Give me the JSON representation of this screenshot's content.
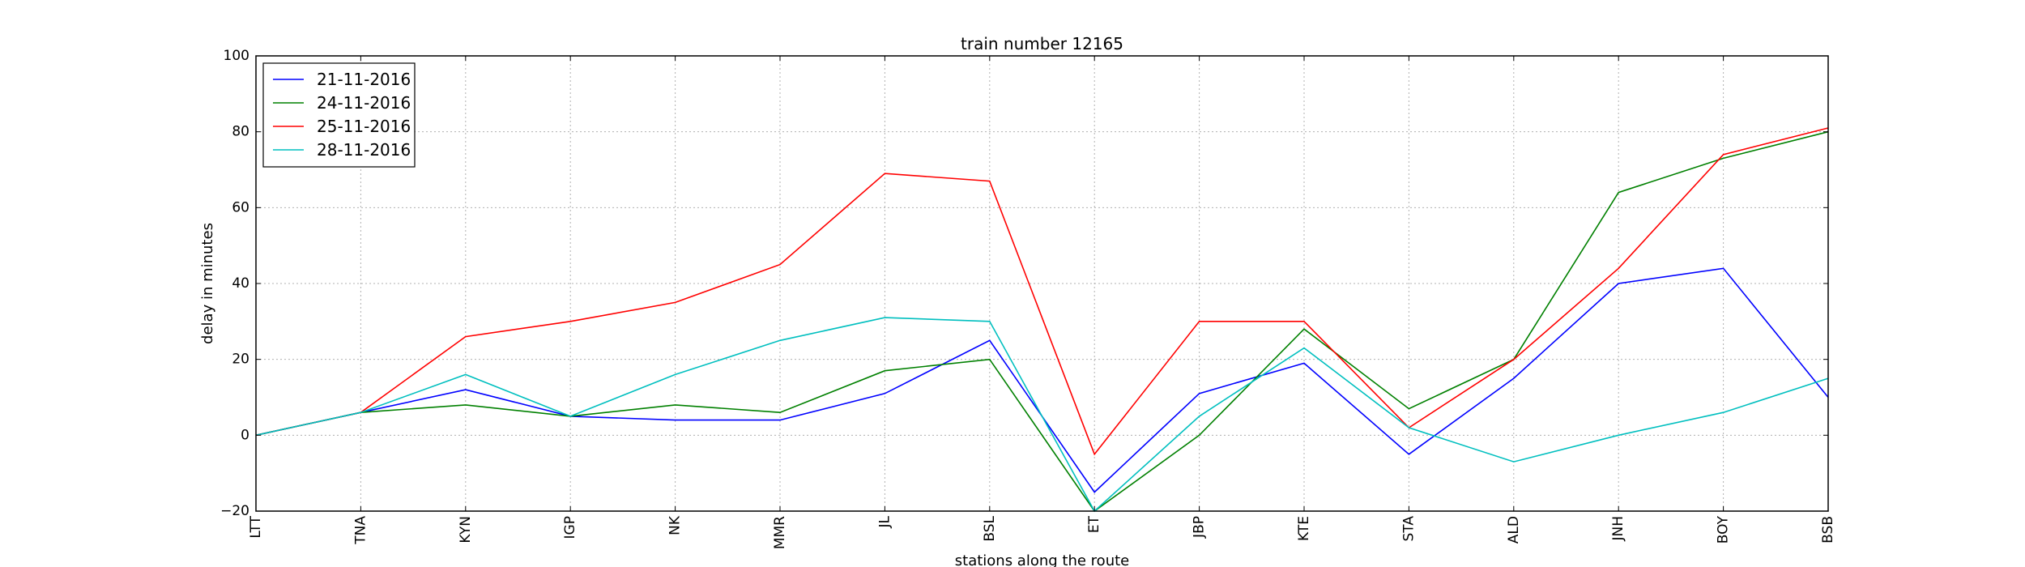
{
  "chart_data": {
    "type": "line",
    "title": "train number 12165",
    "xlabel": "stations along the route",
    "ylabel": "delay in minutes",
    "categories": [
      "LTT",
      "TNA",
      "KYN",
      "IGP",
      "NK",
      "MMR",
      "JL",
      "BSL",
      "ET",
      "JBP",
      "KTE",
      "STA",
      "ALD",
      "JNH",
      "BOY",
      "BSB"
    ],
    "ylim": [
      -20,
      100
    ],
    "yticks": [
      -20,
      0,
      20,
      40,
      60,
      80,
      100
    ],
    "grid": true,
    "legend_position": "top-left",
    "series": [
      {
        "name": "21-11-2016",
        "color": "#0000ff",
        "values": [
          0,
          6,
          12,
          5,
          4,
          4,
          11,
          25,
          -15,
          11,
          19,
          -5,
          15,
          40,
          44,
          10
        ]
      },
      {
        "name": "24-11-2016",
        "color": "#008000",
        "values": [
          0,
          6,
          8,
          5,
          8,
          6,
          17,
          20,
          -20,
          0,
          28,
          7,
          20,
          64,
          73,
          80
        ]
      },
      {
        "name": "25-11-2016",
        "color": "#ff0000",
        "values": [
          0,
          6,
          26,
          30,
          35,
          45,
          69,
          67,
          -5,
          30,
          30,
          2,
          20,
          44,
          74,
          81
        ]
      },
      {
        "name": "28-11-2016",
        "color": "#00bfbf",
        "values": [
          0,
          6,
          16,
          5,
          16,
          25,
          31,
          30,
          -20,
          5,
          23,
          2,
          -7,
          0,
          6,
          15
        ]
      }
    ]
  }
}
